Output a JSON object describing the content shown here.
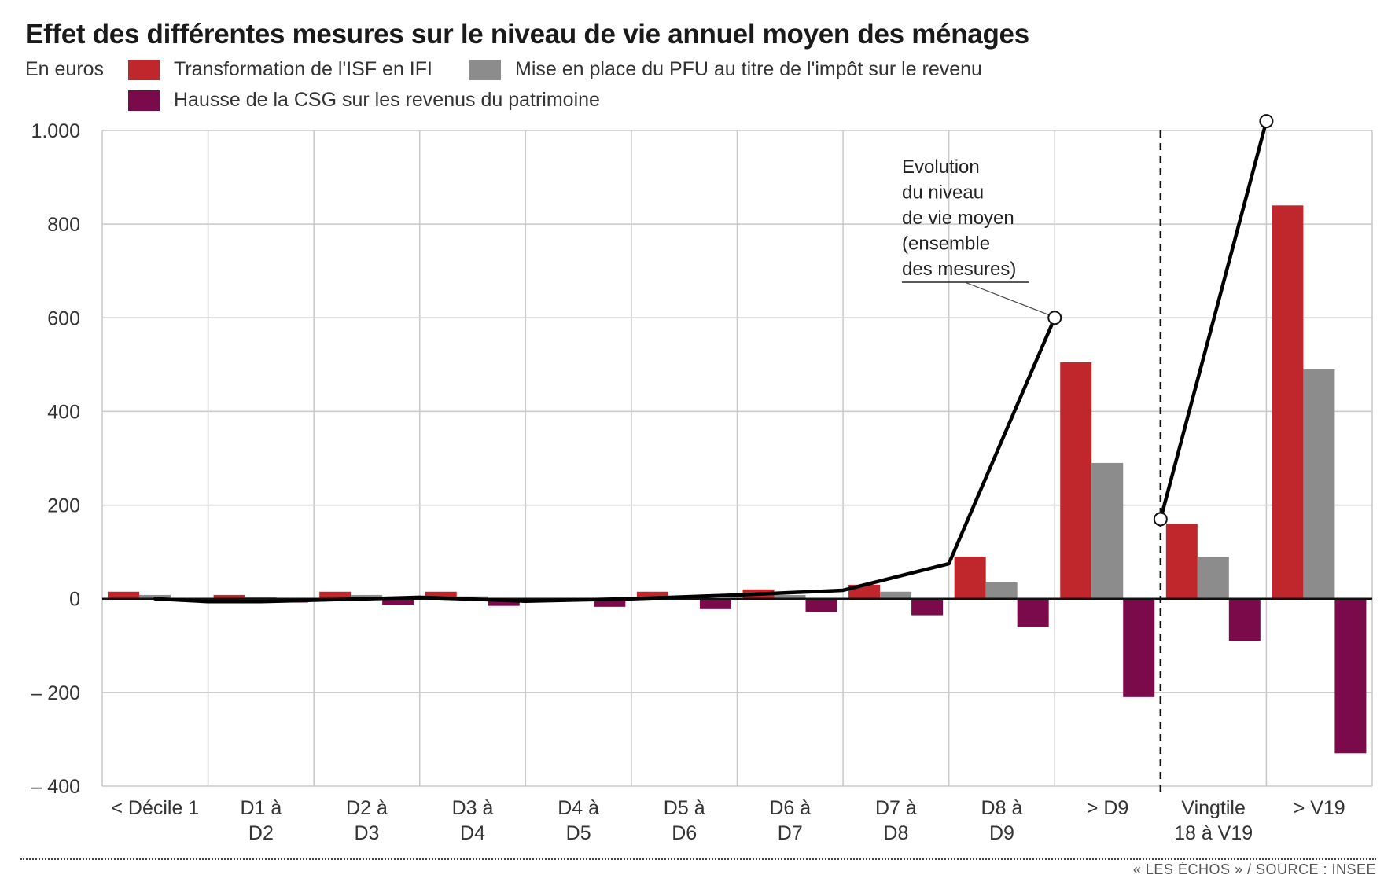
{
  "title": "Effet des différentes mesures sur le niveau de vie annuel moyen des ménages",
  "unit": "En euros",
  "source": "« LES ÉCHOS » / SOURCE : INSEE",
  "colors": {
    "isf_ifi": "#c0272d",
    "pfu": "#8c8c8c",
    "csg": "#7b0a4a",
    "line": "#000000"
  },
  "chart_data": {
    "type": "bar",
    "title": "Effet des différentes mesures sur le niveau de vie annuel moyen des ménages",
    "ylabel": "En euros",
    "ylim": [
      -400,
      1000
    ],
    "yticks": [
      1000,
      800,
      600,
      400,
      200,
      0,
      -200,
      -400
    ],
    "ytick_labels": [
      "1.000",
      "800",
      "600",
      "400",
      "200",
      "0",
      "– 200",
      "– 400"
    ],
    "grid": true,
    "legend_position": "top",
    "categories": [
      [
        "< Décile 1"
      ],
      [
        "D1 à",
        "D2"
      ],
      [
        "D2 à",
        "D3"
      ],
      [
        "D3 à",
        "D4"
      ],
      [
        "D4 à",
        "D5"
      ],
      [
        "D5 à",
        "D6"
      ],
      [
        "D6 à",
        "D7"
      ],
      [
        "D7 à",
        "D8"
      ],
      [
        "D8 à",
        "D9"
      ],
      [
        "> D9"
      ],
      [
        "Vingtile",
        "18 à V19"
      ],
      [
        "> V19"
      ]
    ],
    "series": [
      {
        "name": "Transformation de l'ISF en IFI",
        "values": [
          15,
          8,
          15,
          15,
          0,
          15,
          20,
          30,
          90,
          505,
          160,
          840
        ]
      },
      {
        "name": "Mise en place du PFU au titre de l'impôt sur le revenu",
        "values": [
          8,
          3,
          8,
          5,
          2,
          5,
          8,
          15,
          35,
          290,
          90,
          490
        ]
      },
      {
        "name": "Hausse de la CSG sur les revenus du patrimoine",
        "values": [
          -5,
          -8,
          -13,
          -15,
          -17,
          -22,
          -28,
          -35,
          -60,
          -210,
          -90,
          -330
        ]
      }
    ],
    "line": {
      "name": "Evolution du niveau de vie moyen (ensemble des mesures)",
      "segments": [
        [
          [
            0.5,
            0
          ],
          [
            1,
            -6
          ],
          [
            1.5,
            -6
          ],
          [
            2,
            -3
          ],
          [
            3,
            3
          ],
          [
            4,
            -5
          ],
          [
            5,
            0
          ],
          [
            6,
            8
          ],
          [
            7,
            18
          ],
          [
            8,
            75
          ],
          [
            9,
            600
          ]
        ],
        [
          [
            10,
            170
          ],
          [
            11,
            1020
          ]
        ]
      ],
      "markers": [
        [
          9,
          600
        ],
        [
          10,
          170
        ],
        [
          11,
          1020
        ]
      ]
    },
    "annotation": [
      "Evolution",
      "du niveau",
      "de vie moyen",
      "(ensemble",
      "des mesures)"
    ],
    "separator_after_category": 9
  }
}
